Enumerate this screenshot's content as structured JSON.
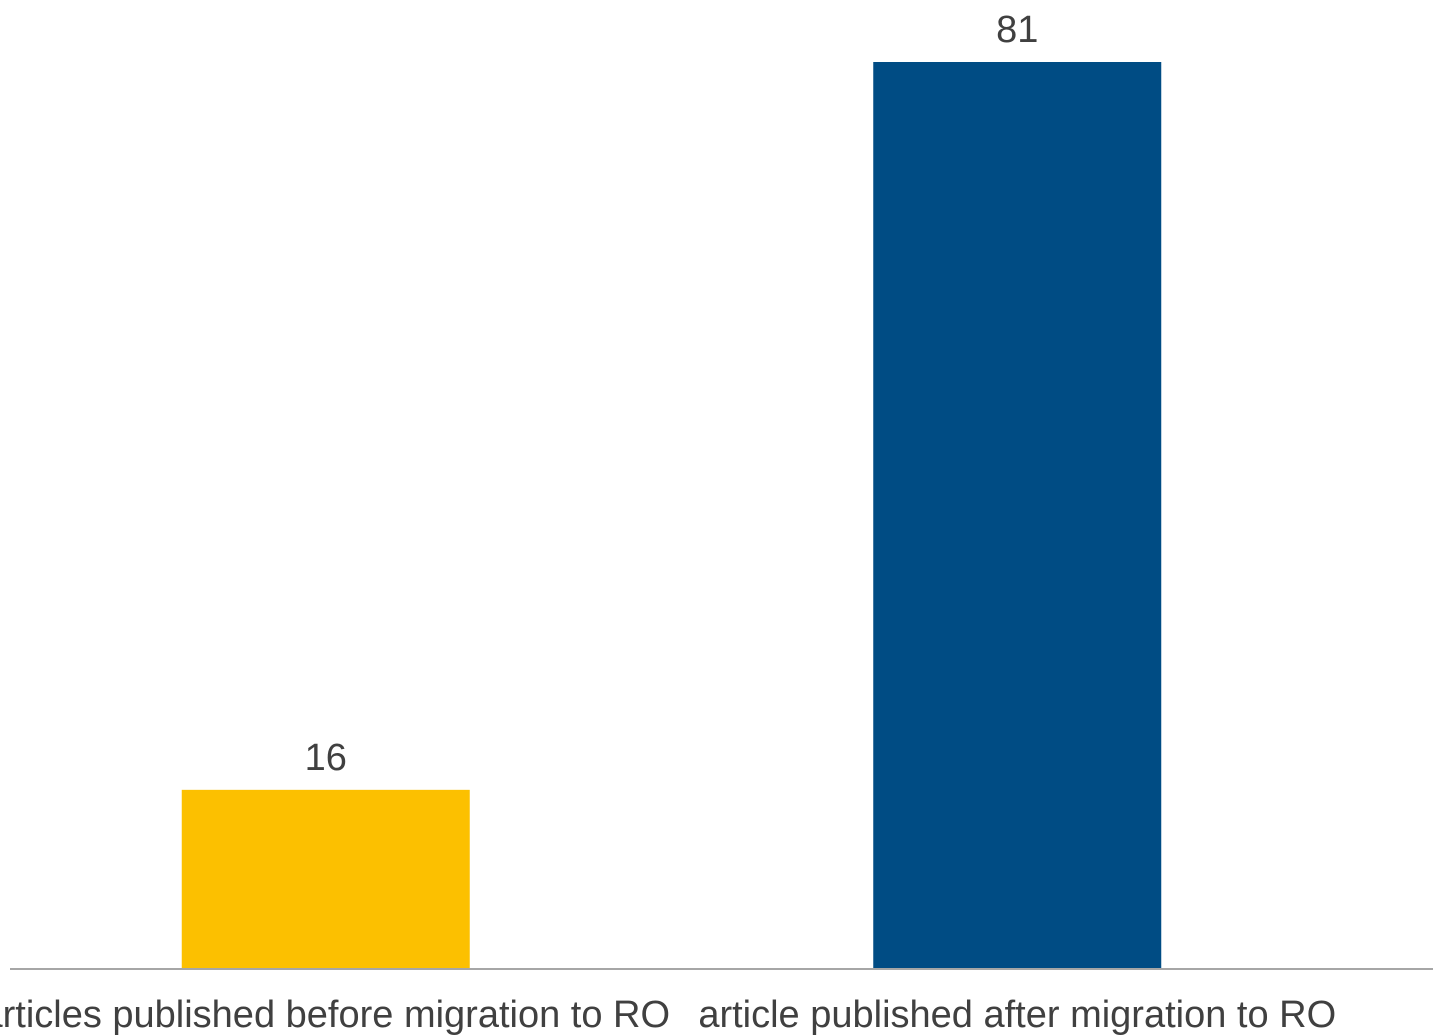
{
  "chart_data": {
    "type": "bar",
    "title": "",
    "xlabel": "",
    "ylabel": "",
    "categories": [
      "articles published before migration to RO",
      "article published after migration to RO"
    ],
    "values": [
      16,
      81
    ],
    "colors": [
      "#FCC000",
      "#004C84"
    ],
    "data_labels": [
      "16",
      "81"
    ],
    "ylim": [
      0,
      81
    ],
    "grid": false,
    "legend": "none",
    "axis_line_color": "#A6A6A6"
  }
}
